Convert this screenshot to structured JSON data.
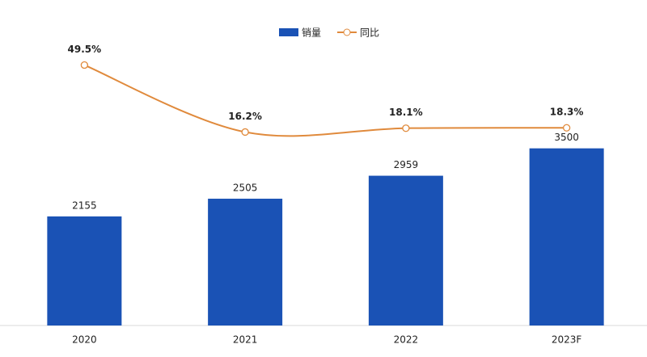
{
  "chart_data": {
    "type": "bar-line",
    "categories": [
      "2020",
      "2021",
      "2022",
      "2023F"
    ],
    "series": [
      {
        "name": "销量",
        "type": "bar",
        "color": "#1a52b5",
        "values": [
          2155,
          2505,
          2959,
          3500
        ]
      },
      {
        "name": "同比",
        "type": "line",
        "axis": "y2",
        "color": "#e08a3c",
        "values": [
          49.5,
          16.2,
          18.1,
          18.3
        ],
        "value_labels": [
          "49.5%",
          "16.2%",
          "18.1%",
          "18.3%"
        ]
      }
    ],
    "ylim": [
      0,
      6000
    ],
    "y2lim": [
      -80,
      71
    ],
    "legend": "top",
    "grid": false
  }
}
